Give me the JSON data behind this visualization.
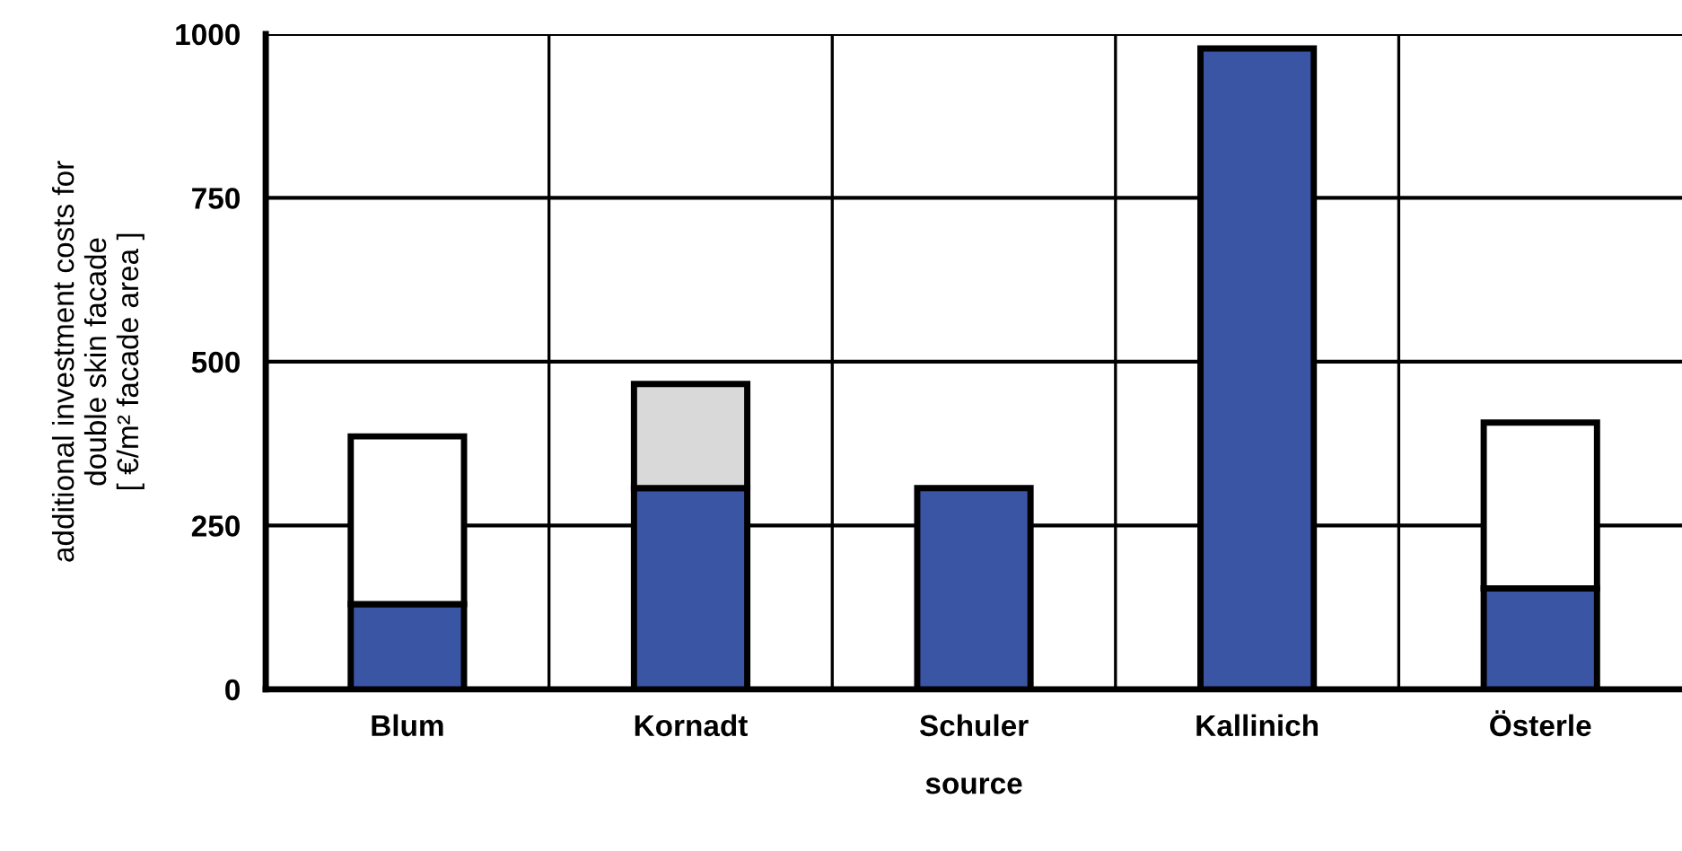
{
  "chart_data": {
    "type": "bar",
    "stacked": true,
    "xlabel": "source",
    "ylabel": "additional investment costs for\ndouble skin facade\n[ €/m² facade area ]",
    "categories": [
      "Blum",
      "Kornadt",
      "Schuler",
      "Kallinich",
      "Österle"
    ],
    "series": [
      {
        "color": "#3a55a4",
        "values": [
          130,
          307,
          307,
          978,
          154
        ]
      },
      {
        "color": "#ffffff",
        "values": [
          256,
          null,
          null,
          null,
          253
        ]
      },
      {
        "color": "#d9d9d9",
        "values": [
          null,
          159,
          null,
          null,
          null
        ]
      }
    ],
    "ylim": [
      0,
      1000
    ],
    "yticks": [
      0,
      250,
      500,
      750,
      1000
    ],
    "grid": true
  }
}
